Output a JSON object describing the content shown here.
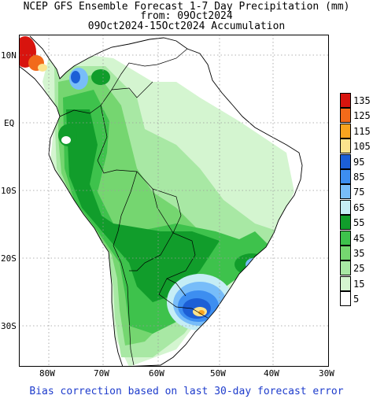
{
  "titles": {
    "line1": "NCEP GFS Ensemble Forecast 1-7 Day Precipitation (mm)",
    "line2": "from: 09Oct2024",
    "line3": "09Oct2024-15Oct2024 Accumulation"
  },
  "axes": {
    "lat_labels": [
      "10N",
      "EQ",
      "10S",
      "20S",
      "30S"
    ],
    "lon_labels": [
      "80W",
      "70W",
      "60W",
      "50W",
      "40W",
      "30W"
    ]
  },
  "legend": {
    "levels": [
      "135",
      "125",
      "115",
      "105",
      "95",
      "85",
      "75",
      "65",
      "55",
      "45",
      "35",
      "25",
      "15",
      "5"
    ],
    "colors": [
      "#d8140e",
      "#f26a1a",
      "#f9a41f",
      "#fbe38d",
      "#1c5fd6",
      "#3d8ef0",
      "#78bdf9",
      "#c5edf5",
      "#119d2b",
      "#3ec24c",
      "#75d670",
      "#a8e8a4",
      "#d4f5d0",
      "#ffffff"
    ]
  },
  "footer": "Bias correction based on last 30-day forecast error",
  "colors": {
    "land_outline": "#000000",
    "grid": "#9a9a9a",
    "footer_text": "#1e3ccc"
  }
}
